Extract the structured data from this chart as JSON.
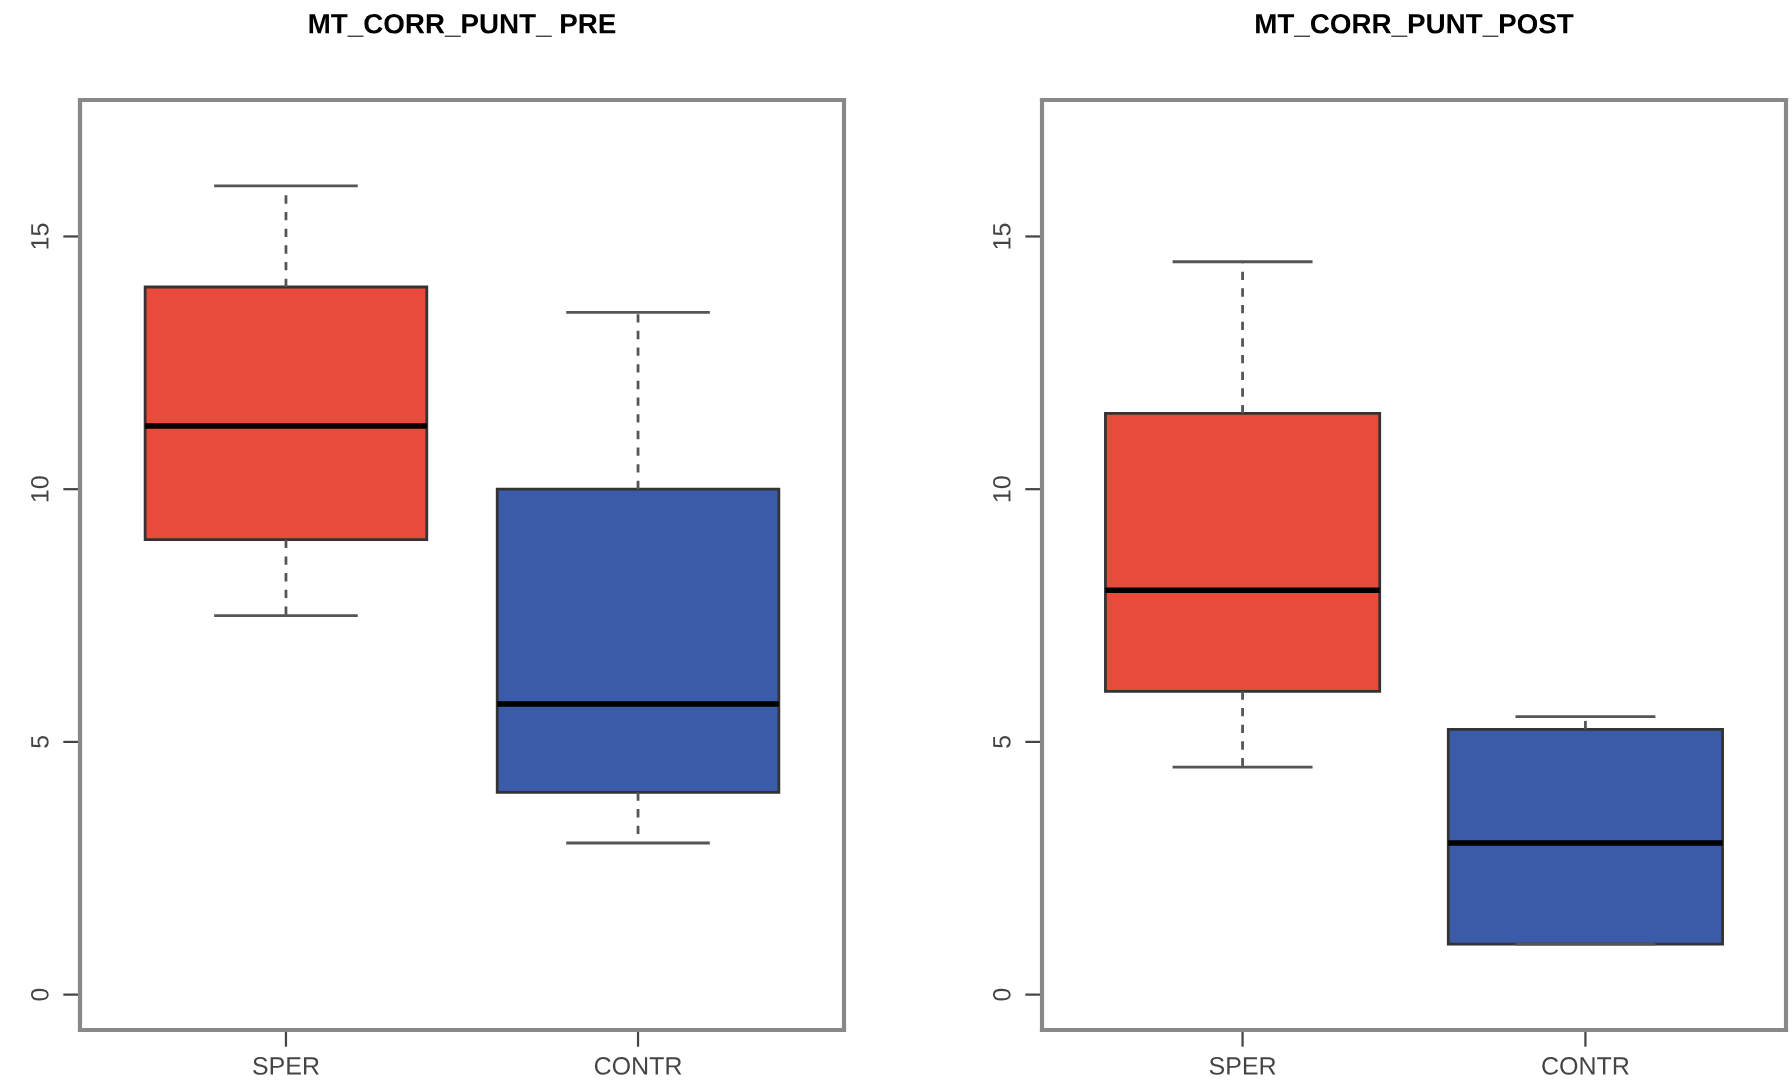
{
  "chart_data": [
    {
      "type": "box",
      "title": "MT_CORR_PUNT_ PRE",
      "categories": [
        "SPER",
        "CONTR"
      ],
      "colors": [
        "#e84a3c",
        "#3b5ba8"
      ],
      "ylim": [
        -0.7,
        17.7
      ],
      "yticks": [
        0,
        5,
        10,
        15
      ],
      "boxes": [
        {
          "low": 7.5,
          "q1": 9,
          "median": 11.25,
          "q3": 14,
          "high": 16
        },
        {
          "low": 3,
          "q1": 4,
          "median": 5.75,
          "q3": 10,
          "high": 13.5
        }
      ]
    },
    {
      "type": "box",
      "title": "MT_CORR_PUNT_POST",
      "categories": [
        "SPER",
        "CONTR"
      ],
      "colors": [
        "#e84a3c",
        "#3b5ba8"
      ],
      "ylim": [
        -0.7,
        17.7
      ],
      "yticks": [
        0,
        5,
        10,
        15
      ],
      "boxes": [
        {
          "low": 4.5,
          "q1": 6,
          "median": 8,
          "q3": 11.5,
          "high": 14.5
        },
        {
          "low": 1,
          "q1": 1,
          "median": 3,
          "q3": 5.25,
          "high": 5.5
        }
      ]
    }
  ]
}
